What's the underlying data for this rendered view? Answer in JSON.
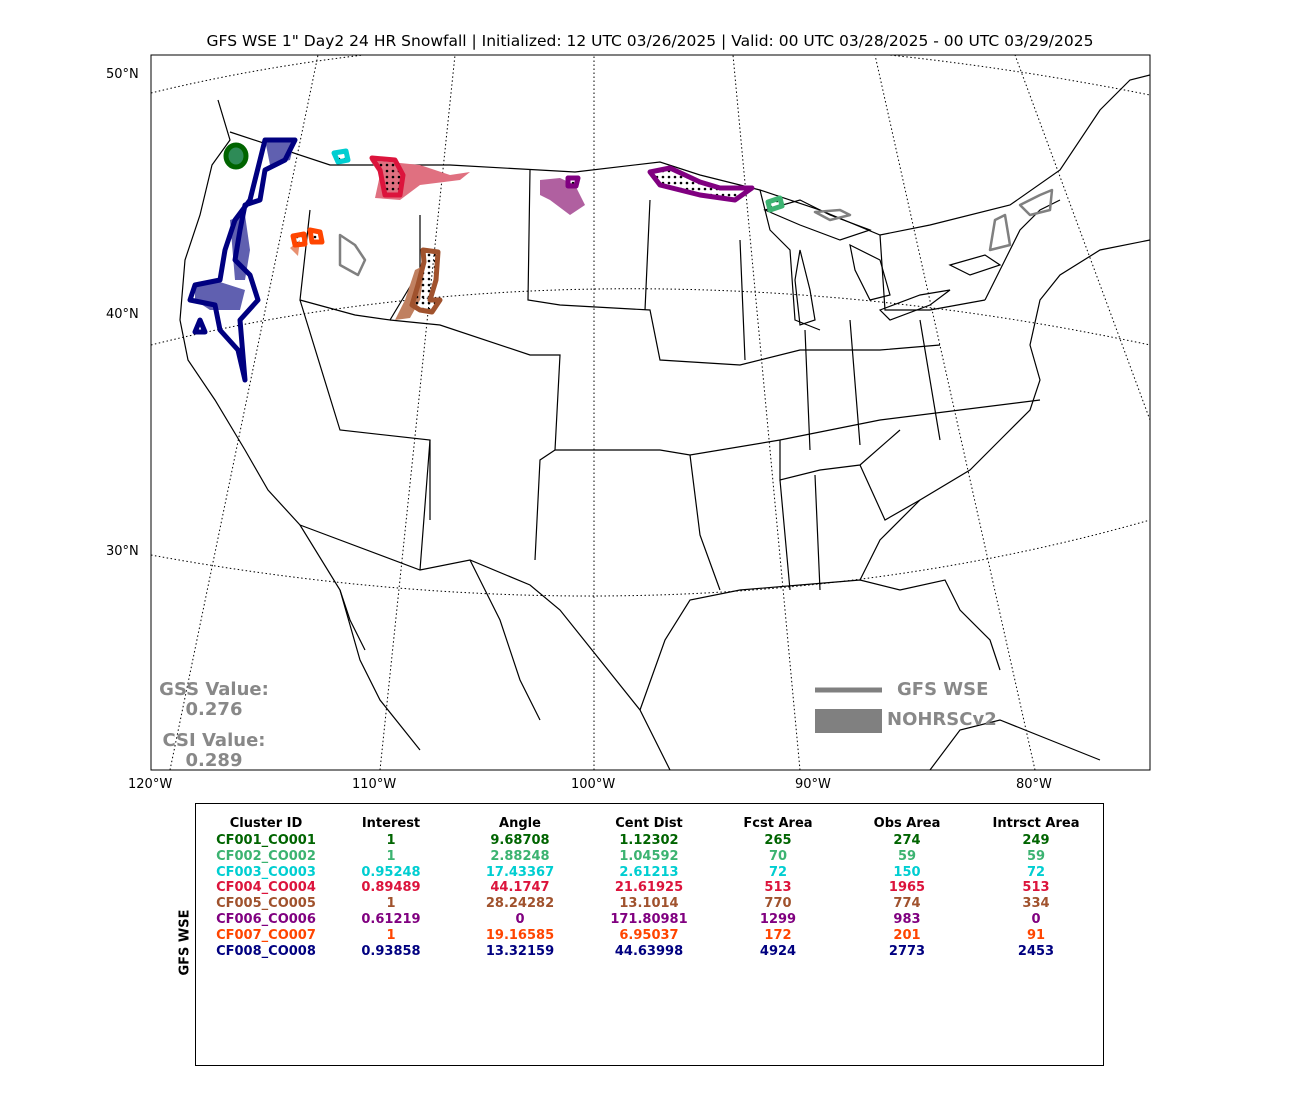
{
  "title": "GFS WSE 1\" Day2 24 HR Snowfall | Initialized: 12 UTC 03/26/2025 | Valid: 00 UTC 03/28/2025 - 00 UTC 03/29/2025",
  "lat_labels": [
    "50°N",
    "40°N",
    "30°N"
  ],
  "lon_labels": [
    "120°W",
    "110°W",
    "100°W",
    "90°W",
    "80°W"
  ],
  "scores": {
    "gss_label": "GSS Value:",
    "gss_value": "0.276",
    "csi_label": "CSI Value:",
    "csi_value": "0.289"
  },
  "legend": {
    "line_label": "GFS WSE",
    "fill_label": "NOHRSCv2",
    "line_color": "#808080",
    "fill_color": "#808080"
  },
  "table": {
    "ylabel": "GFS WSE",
    "headers": [
      "Cluster ID",
      "Interest",
      "Angle",
      "Cent Dist",
      "Fcst Area",
      "Obs Area",
      "Intrsct Area"
    ],
    "rows": [
      {
        "color": "#006400",
        "cells": [
          "CF001_CO001",
          "1",
          "9.68708",
          "1.12302",
          "265",
          "274",
          "249"
        ]
      },
      {
        "color": "#3CB371",
        "cells": [
          "CF002_CO002",
          "1",
          "2.88248",
          "1.04592",
          "70",
          "59",
          "59"
        ]
      },
      {
        "color": "#00CED1",
        "cells": [
          "CF003_CO003",
          "0.95248",
          "17.43367",
          "2.61213",
          "72",
          "150",
          "72"
        ]
      },
      {
        "color": "#DC143C",
        "cells": [
          "CF004_CO004",
          "0.89489",
          "44.1747",
          "21.61925",
          "513",
          "1965",
          "513"
        ]
      },
      {
        "color": "#A0522D",
        "cells": [
          "CF005_CO005",
          "1",
          "28.24282",
          "13.1014",
          "770",
          "774",
          "334"
        ]
      },
      {
        "color": "#800080",
        "cells": [
          "CF006_CO006",
          "0.61219",
          "0",
          "171.80981",
          "1299",
          "983",
          "0"
        ]
      },
      {
        "color": "#FF4500",
        "cells": [
          "CF007_CO007",
          "1",
          "19.16585",
          "6.95037",
          "172",
          "201",
          "91"
        ]
      },
      {
        "color": "#000080",
        "cells": [
          "CF008_CO008",
          "0.93858",
          "13.32159",
          "44.63998",
          "4924",
          "2773",
          "2453"
        ]
      }
    ]
  }
}
